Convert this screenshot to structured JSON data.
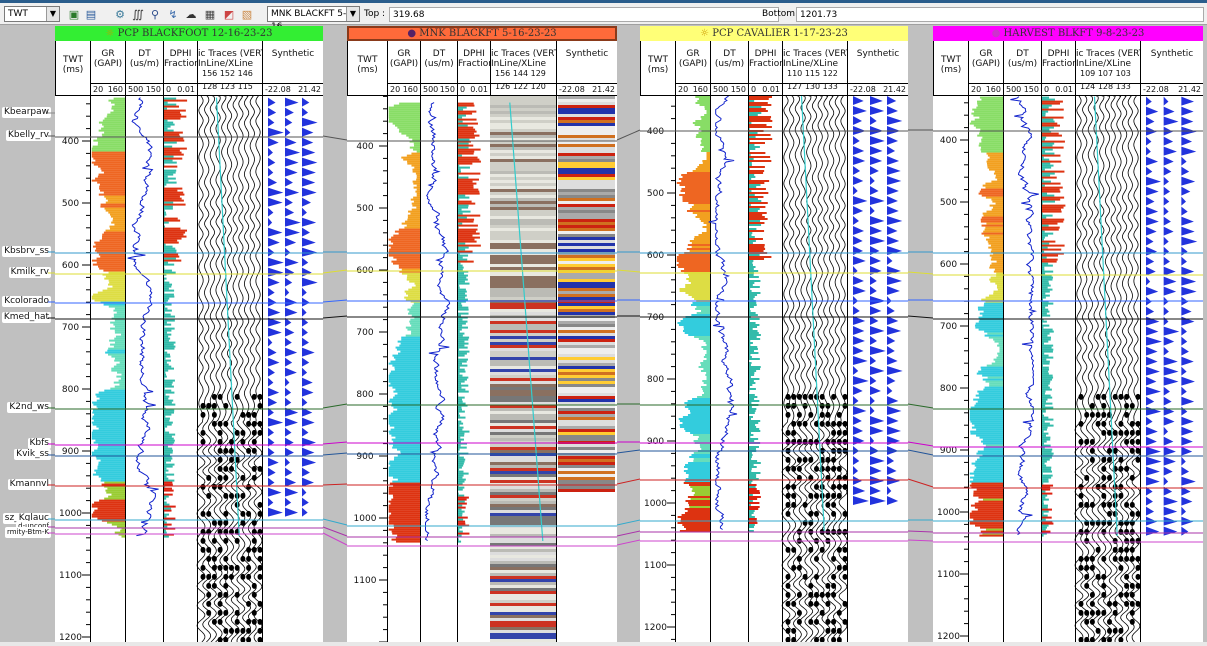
{
  "toolbar": {
    "domain_select": "TWT",
    "well_select": "MNK BLACKFT 5-16",
    "top_label": "Top :",
    "top_value": "319.68",
    "bottom_label": "Bottom :",
    "bottom_value": "1201.73",
    "icons": [
      "add-track-icon",
      "remove-track-icon",
      "seismic-icon",
      "wavelet-icon",
      "zoom-icon",
      "stretch-icon",
      "display-icon",
      "settings-icon",
      "color-icon",
      "export-icon"
    ]
  },
  "formation_tops": [
    "Kbearpaw",
    "Kbelly_rv",
    "Kbsbrv_ss",
    "Kmilk_rv",
    "Kcolorado",
    "Kmed_hat",
    "K2nd_ws",
    "Kbfs",
    "Kvik_ss",
    "Kmannvl",
    "sz_Kglauc",
    "d-unconf",
    "rmity-Btm-K"
  ],
  "column_headers": {
    "twt": "TWT\n(ms)",
    "gr": "GR\n(GAPI)",
    "dt": "DT\n(us/m)",
    "dphi": "DPHI\nFraction",
    "seismic": "ic Traces (VERT)\nInLine/XLine",
    "synthetic": "Synthetic"
  },
  "scales": {
    "gr": [
      "20",
      "160"
    ],
    "dt": [
      "500",
      "150"
    ],
    "dphi": [
      "0",
      "0.01"
    ],
    "synthetic": [
      "-22.08",
      "21.42"
    ]
  },
  "wells": [
    {
      "name": "PCP BLACKFOOT 12-16-23-23",
      "color": "#33ee33",
      "icon": "sun-icon",
      "inline": [
        "156",
        "152",
        "146"
      ],
      "xline": [
        "128",
        "123",
        "115"
      ],
      "ticks": [
        "400",
        "500",
        "600",
        "700",
        "800",
        "900",
        "1000",
        "1100",
        "1200"
      ]
    },
    {
      "name": "MNK BLACKFT 5-16-23-23",
      "color": "#ff6a3a",
      "icon": "circle-icon",
      "inline": [
        "156",
        "144",
        "129"
      ],
      "xline": [
        "126",
        "122",
        "120"
      ],
      "ticks": [
        "400",
        "500",
        "600",
        "700",
        "800",
        "900",
        "1000",
        "1100"
      ]
    },
    {
      "name": "PCP CAVALIER 1-17-23-23",
      "color": "#ffff77",
      "icon": "sun-icon",
      "inline": [
        "110",
        "115",
        "122"
      ],
      "xline": [
        "127",
        "130",
        "133"
      ],
      "ticks": [
        "400",
        "500",
        "600",
        "700",
        "800",
        "900",
        "1000",
        "1100",
        "1200"
      ]
    },
    {
      "name": "HARVEST BLKFT 9-8-23-23",
      "color": "#ff00ff",
      "icon": "circle-icon",
      "inline": [
        "109",
        "107",
        "103"
      ],
      "xline": [
        "124",
        "128",
        "133"
      ],
      "ticks": [
        "400",
        "500",
        "600",
        "700",
        "800",
        "900",
        "1000",
        "1100",
        "1200"
      ]
    }
  ],
  "colors": {
    "top_lines": [
      "#888888",
      "#555555",
      "#3399cc",
      "#dddd33",
      "#3366ff",
      "#111111",
      "#2a6a2a",
      "#cc00cc",
      "#225599",
      "#cc2222",
      "#33aacc",
      "#aa33aa",
      "#cc44cc"
    ]
  }
}
